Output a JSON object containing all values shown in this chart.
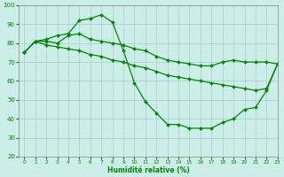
{
  "xlabel": "Humidité relative (%)",
  "bg_color": "#cceee8",
  "grid_color": "#aacccc",
  "line_color": "#008800",
  "marker": "D",
  "markersize": 2.0,
  "linewidth": 0.9,
  "ylim": [
    20,
    100
  ],
  "xlim": [
    -0.5,
    23
  ],
  "yticks": [
    20,
    30,
    40,
    50,
    60,
    70,
    80,
    90,
    100
  ],
  "xticks": [
    0,
    1,
    2,
    3,
    4,
    5,
    6,
    7,
    8,
    9,
    10,
    11,
    12,
    13,
    14,
    15,
    16,
    17,
    18,
    19,
    20,
    21,
    22,
    23
  ],
  "series1_y": [
    75,
    81,
    82,
    84,
    85,
    92,
    93,
    95,
    91,
    76,
    59,
    49,
    43,
    37,
    37,
    35,
    35,
    35,
    38,
    40,
    45,
    46,
    55,
    69
  ],
  "series2_y": [
    75,
    81,
    81,
    80,
    84,
    85,
    82,
    81,
    80,
    79,
    77,
    76,
    73,
    71,
    70,
    69,
    68,
    68,
    70,
    71,
    70,
    70,
    70,
    69
  ],
  "series3_y": [
    75,
    81,
    79,
    78,
    77,
    76,
    74,
    73,
    71,
    70,
    68,
    67,
    65,
    63,
    62,
    61,
    60,
    59,
    58,
    57,
    56,
    55,
    56,
    69
  ]
}
